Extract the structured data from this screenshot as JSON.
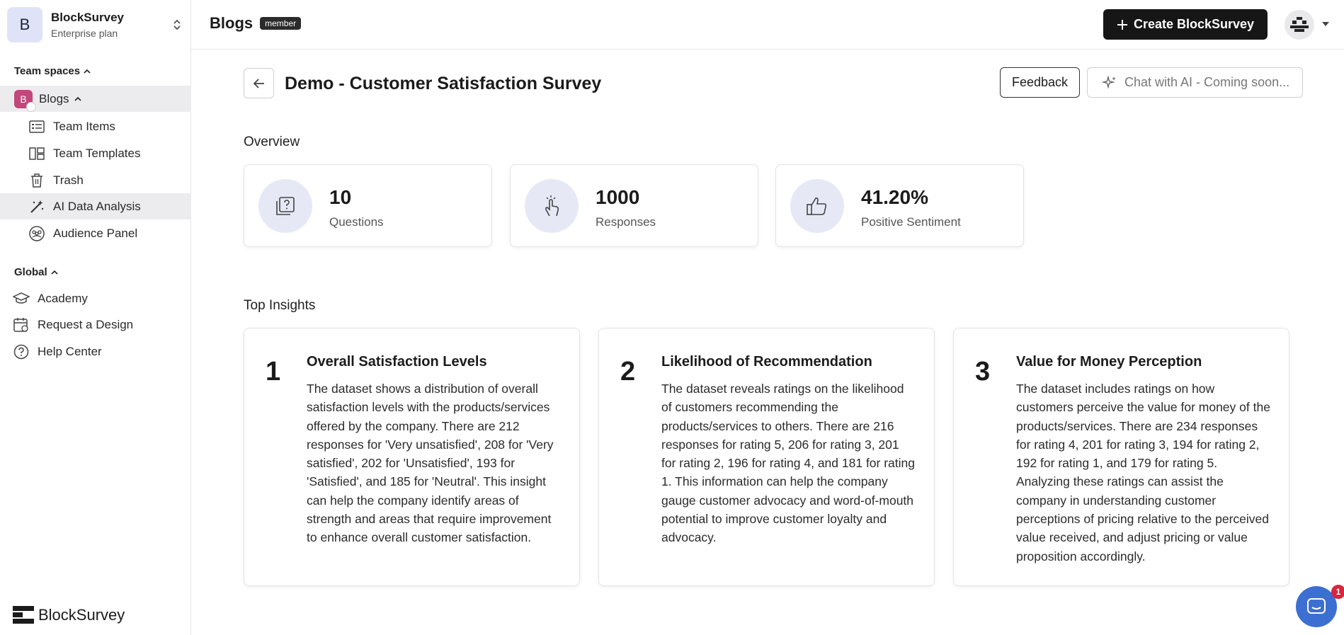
{
  "workspace": {
    "initial": "B",
    "name": "BlockSurvey",
    "plan": "Enterprise plan"
  },
  "sidebar": {
    "team_spaces_label": "Team spaces",
    "space": {
      "initial": "B",
      "name": "Blogs"
    },
    "team_items": [
      {
        "label": "Team Items",
        "icon": "list-icon"
      },
      {
        "label": "Team Templates",
        "icon": "template-icon"
      },
      {
        "label": "Trash",
        "icon": "trash-icon"
      },
      {
        "label": "AI Data Analysis",
        "icon": "magic-wand-icon",
        "active": true
      },
      {
        "label": "Audience Panel",
        "icon": "audience-icon"
      }
    ],
    "global_label": "Global",
    "global_items": [
      {
        "label": "Academy",
        "icon": "graduation-cap-icon"
      },
      {
        "label": "Request a Design",
        "icon": "calendar-icon"
      },
      {
        "label": "Help Center",
        "icon": "help-icon"
      }
    ],
    "logo_text": "BlockSurvey"
  },
  "header": {
    "title": "Blogs",
    "badge": "member",
    "create_button": "Create BlockSurvey"
  },
  "main": {
    "survey_title": "Demo - Customer Satisfaction Survey",
    "feedback_button": "Feedback",
    "chat_button": "Chat with AI - Coming soon...",
    "overview_label": "Overview",
    "stats": [
      {
        "value": "10",
        "label": "Questions",
        "icon": "question-icon"
      },
      {
        "value": "1000",
        "label": "Responses",
        "icon": "tap-icon"
      },
      {
        "value": "41.20%",
        "label": "Positive Sentiment",
        "icon": "thumbs-up-icon"
      }
    ],
    "insights_label": "Top Insights",
    "insights": [
      {
        "number": "1",
        "title": "Overall Satisfaction Levels",
        "body": "The dataset shows a distribution of overall satisfaction levels with the products/services offered by the company. There are 212 responses for 'Very unsatisfied', 208 for 'Very satisfied', 202 for 'Unsatisfied', 193 for 'Satisfied', and 185 for 'Neutral'. This insight can help the company identify areas of strength and areas that require improvement to enhance overall customer satisfaction."
      },
      {
        "number": "2",
        "title": "Likelihood of Recommendation",
        "body": "The dataset reveals ratings on the likelihood of customers recommending the products/services to others. There are 216 responses for rating 5, 206 for rating 3, 201 for rating 2, 196 for rating 4, and 181 for rating 1. This information can help the company gauge customer advocacy and word-of-mouth potential to improve customer loyalty and advocacy."
      },
      {
        "number": "3",
        "title": "Value for Money Perception",
        "body": "The dataset includes ratings on how customers perceive the value for money of the products/services. There are 234 responses for rating 4, 201 for rating 3, 194 for rating 2, 192 for rating 1, and 179 for rating 5. Analyzing these ratings can assist the company in understanding customer perceptions of pricing relative to the perceived value received, and adjust pricing or value proposition accordingly."
      }
    ]
  },
  "chat_widget": {
    "count": "1"
  }
}
